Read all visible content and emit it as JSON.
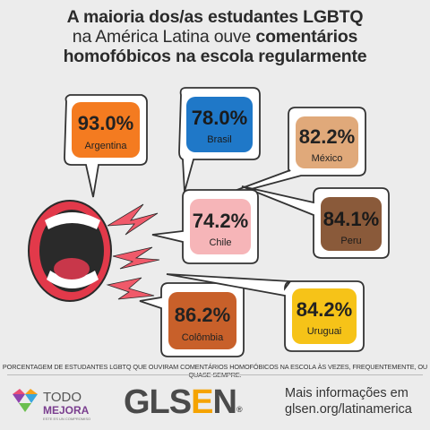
{
  "title": {
    "line1": "A maioria dos/as estudantes LGBTQ",
    "line2_plain": "na América Latina ouve ",
    "line2_bold": "comentários",
    "line3": "homofóbicos na escola regularmente"
  },
  "bubbles": [
    {
      "value": "93.0%",
      "country": "Argentina",
      "fill": "#f47b20"
    },
    {
      "value": "78.0%",
      "country": "Brasil",
      "fill": "#1f78c8"
    },
    {
      "value": "82.2%",
      "country": "México",
      "fill": "#e0a97a"
    },
    {
      "value": "84.1%",
      "country": "Peru",
      "fill": "#8a5a3a"
    },
    {
      "value": "74.2%",
      "country": "Chile",
      "fill": "#f6b5b8"
    },
    {
      "value": "86.2%",
      "country": "Colômbia",
      "fill": "#c8602a"
    },
    {
      "value": "84.2%",
      "country": "Uruguai",
      "fill": "#f6c318"
    }
  ],
  "footnote": "PORCENTAGEM DE ESTUDANTES LGBTQ QUE OUVIRAM COMENTÁRIOS HOMOFÓBICOS NA ESCOLA ÀS VEZES, FREQUENTEMENTE, OU QUASE SEMPRE.",
  "logos": {
    "todo": "TODO",
    "mejora": "MEJORA",
    "mejora_tag": "ESTE ES UN COMPROMISO",
    "glsen_gls": "GLS",
    "glsen_e": "E",
    "glsen_n": "N",
    "glsen_reg": "®"
  },
  "more_info": {
    "line1": "Mais informações em",
    "line2": "glsen.org/latinamerica"
  },
  "colors": {
    "background": "#ececec",
    "bubble_outline": "#333333",
    "mouth_red": "#e2394a",
    "mouth_dark": "#2a2a2a",
    "shout_pink": "#f05a6a"
  }
}
